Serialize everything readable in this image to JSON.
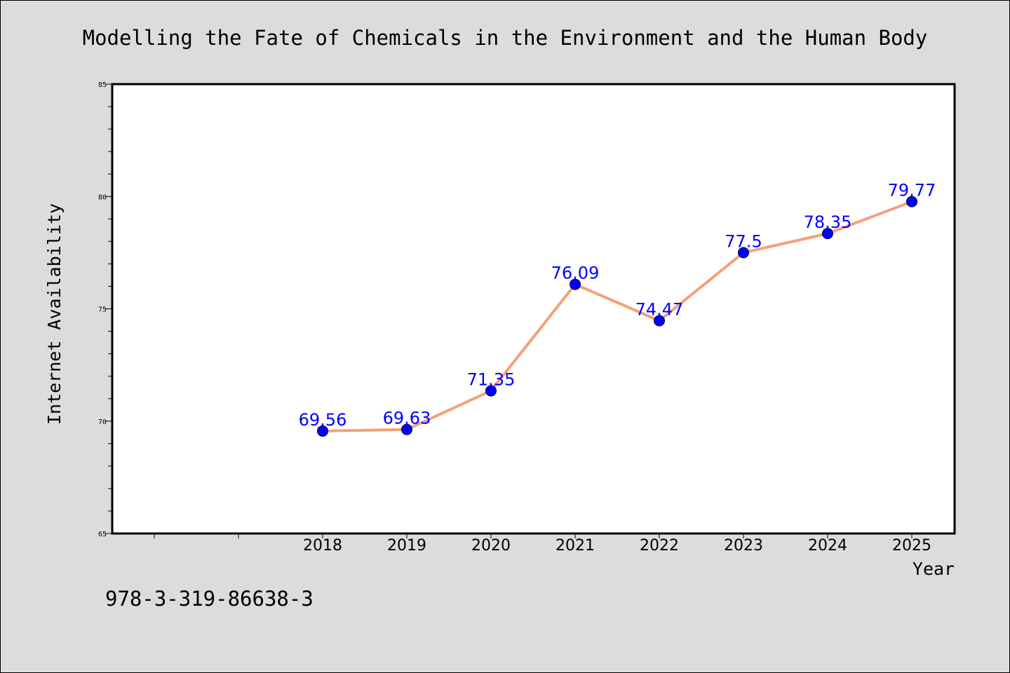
{
  "chart_data": {
    "type": "line",
    "title": "Modelling the Fate of Chemicals in the Environment and the Human Body",
    "xlabel": "Year",
    "ylabel": "Internet Availability",
    "categories": [
      "2018",
      "2019",
      "2020",
      "2021",
      "2022",
      "2023",
      "2024",
      "2025"
    ],
    "series": [
      {
        "values": [
          69.56,
          69.63,
          71.35,
          76.09,
          74.47,
          77.5,
          78.35,
          79.77
        ],
        "labels": [
          "69.56",
          "69.63",
          "71.35",
          "76.09",
          "74.47",
          "77.5",
          "78.35",
          "79.77"
        ],
        "line_color": "#f4a07a",
        "marker_color": "#0000ff"
      }
    ],
    "yticks": [
      "65",
      "70",
      "75",
      "80",
      "85"
    ],
    "ylim": [
      65,
      85
    ],
    "grid": false,
    "legend": "none"
  },
  "footer_text": "978-3-319-86638-3"
}
